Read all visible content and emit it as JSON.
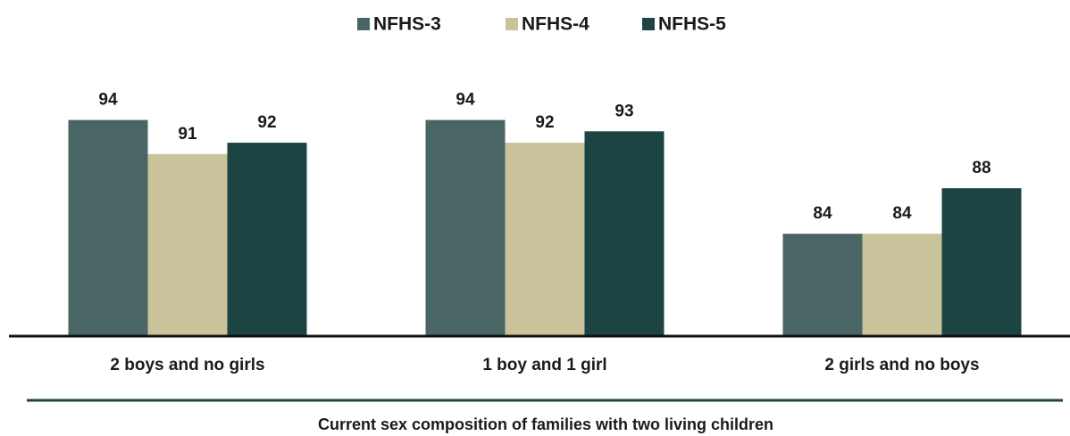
{
  "chart_data": {
    "type": "bar",
    "x_label": "Current sex composition of families with two living children",
    "categories": [
      "2 boys and no girls",
      "1 boy and 1 girl",
      "2 girls and no boys"
    ],
    "series": [
      {
        "name": "NFHS-3",
        "color": "#4a6664",
        "values": [
          94,
          94,
          84
        ]
      },
      {
        "name": "NFHS-4",
        "color": "#c9c29a",
        "values": [
          91,
          92,
          84
        ]
      },
      {
        "name": "NFHS-5",
        "color": "#1c4443",
        "values": [
          92,
          93,
          88
        ]
      }
    ],
    "ylim": [
      75,
      100
    ],
    "legend": "top"
  }
}
